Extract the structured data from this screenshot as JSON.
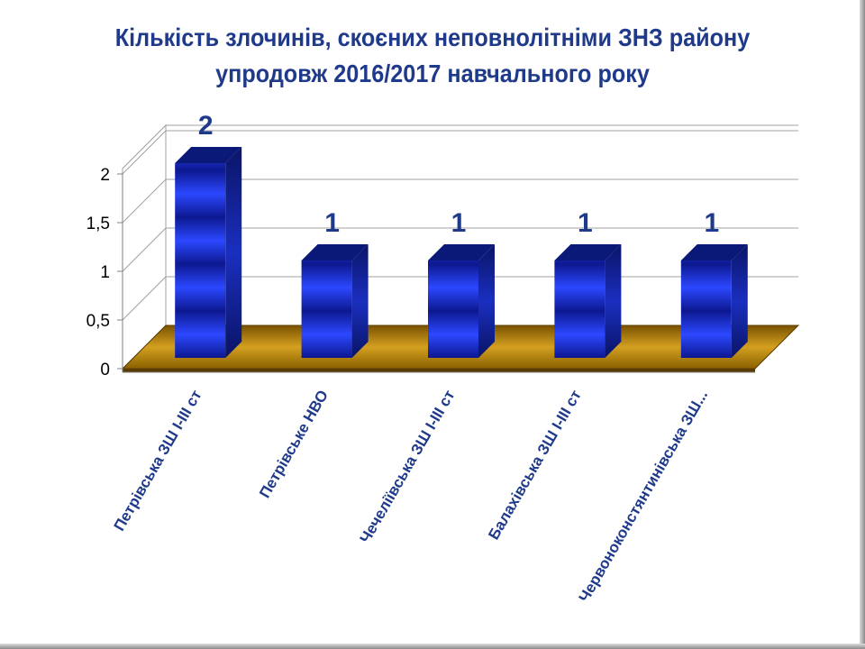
{
  "chart_data": {
    "type": "bar",
    "title_lines": [
      "Кількість  злочинів, скоєних неповнолітніми ЗНЗ району",
      "упродовж 2016/2017 навчального року"
    ],
    "categories": [
      "Петрівська ЗШ І-ІІІ ст",
      "Петрівське НВО",
      "Чечеліївська ЗШ І-ІІІ ст",
      "Балахівська ЗШ І-ІІІ ст",
      "Червоноконстянтинівська ЗШ..."
    ],
    "values": [
      2,
      1,
      1,
      1,
      1
    ],
    "data_labels": [
      "2",
      "1",
      "1",
      "1",
      "1"
    ],
    "y_ticks": [
      "0",
      "0,5",
      "1",
      "1,5",
      "2"
    ],
    "ylim": [
      0,
      2
    ],
    "grid": true,
    "legend": "none",
    "colors": {
      "bar": "#1a2fd6",
      "bar_dark": "#0a1470",
      "floor": "#b8860b",
      "title": "#1f3a8a",
      "labels": "#1f3a8a"
    }
  }
}
